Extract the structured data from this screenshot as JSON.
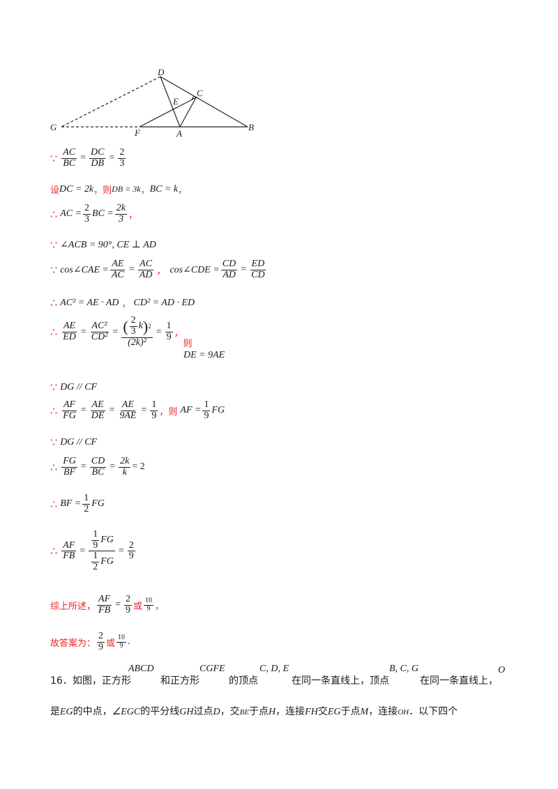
{
  "figure": {
    "labels": {
      "D": "D",
      "C": "C",
      "E": "E",
      "G": "G",
      "F": "F",
      "A": "A",
      "B": "B"
    }
  },
  "lines": {
    "l1": {
      "sym": "∵",
      "f1n": "AC",
      "f1d": "BC",
      "f2n": "DC",
      "f2d": "DB",
      "f3n": "2",
      "f3d": "3"
    },
    "l2": {
      "prefix": "设",
      "a": "DC = 2k",
      "mid": "，则",
      "b": "DB = 3k",
      "sep": "，",
      "c": "BC = k",
      "end": "，"
    },
    "l3": {
      "sym": "∴",
      "lhs": "AC =",
      "f1n": "2",
      "f1d": "3",
      "mid": "BC =",
      "f2n": "2k",
      "f2d": "3",
      "end": "，"
    },
    "l4": {
      "sym": "∵",
      "expr": "∠ACB = 90°, CE ⊥ AD"
    },
    "l5": {
      "sym": "∵",
      "a": "cos∠CAE =",
      "f1n": "AE",
      "f1d": "AC",
      "f2n": "AC",
      "f2d": "AD",
      "sep": "，",
      "b": "cos∠CDE =",
      "f3n": "CD",
      "f3d": "AD",
      "f4n": "ED",
      "f4d": "CD"
    },
    "l6": {
      "sym": "∴",
      "a": "AC² = AE · AD",
      "sep": "，",
      "b": "CD² = AD · ED"
    },
    "l7": {
      "sym": "∴",
      "f1n": "AE",
      "f1d": "ED",
      "f2n": "AC²",
      "f2d": "CD²",
      "f3n_inner_n": "2",
      "f3n_inner_d": "3",
      "f3n_k": "k",
      "f3d": "(2k)²",
      "f4n": "1",
      "f4d": "9",
      "sep": "，",
      "then": "则",
      "result": "DE = 9AE"
    },
    "l8": {
      "sym": "∵",
      "expr": "DG // CF"
    },
    "l9": {
      "sym": "∴",
      "f1n": "AF",
      "f1d": "FG",
      "f2n": "AE",
      "f2d": "DE",
      "f3n": "AE",
      "f3d": "9AE",
      "f4n": "1",
      "f4d": "9",
      "sep": "，",
      "then": "则",
      "a": "AF =",
      "f5n": "1",
      "f5d": "9",
      "b": "FG"
    },
    "l10": {
      "sym": "∵",
      "expr": "DG // CF"
    },
    "l11": {
      "sym": "∴",
      "f1n": "FG",
      "f1d": "BF",
      "f2n": "CD",
      "f2d": "BC",
      "f3n": "2k",
      "f3d": "k",
      "end": "= 2"
    },
    "l12": {
      "sym": "∴",
      "a": "BF =",
      "f1n": "1",
      "f1d": "2",
      "b": "FG"
    },
    "l13": {
      "sym": "∴",
      "f1n": "AF",
      "f1d": "FB",
      "num_n": "1",
      "num_d": "9",
      "num_t": "FG",
      "den_n": "1",
      "den_d": "2",
      "den_t": "FG",
      "f3n": "2",
      "f3d": "9"
    },
    "l14": {
      "prefix": "综上所述，",
      "f1n": "AF",
      "f1d": "FB",
      "f2n": "2",
      "f2d": "9",
      "or": "或",
      "f3n": "10",
      "f3d": "9",
      "end": "，"
    },
    "l15": {
      "prefix": "故答案为：",
      "f1n": "2",
      "f1d": "9",
      "or": "或",
      "f2n": "10",
      "f2d": "9",
      "end": "."
    }
  },
  "problem16": {
    "line1_a": "16．如图，正方形",
    "sq1": "ABCD",
    "line1_b": "和正方形",
    "sq2": "CGFE",
    "line1_c": "的顶点",
    "pts1": "C, D, E",
    "line1_d": "在同一条直线上，顶点",
    "pts2": "B, C, G",
    "line1_e": "在同一条直线上，",
    "pt_o": "O",
    "line2_a": "是",
    "seg_eg": "EG",
    "line2_b": "的中点，",
    "angle": "∠EGC",
    "line2_c": "的平分线",
    "gh": "GH",
    "line2_d": "过点",
    "pd": "D",
    "line2_e": "，交",
    "be": "BE",
    "line2_f": "于点",
    "ph": "H",
    "line2_g": "，连接",
    "fh": "FH",
    "line2_h": "交",
    "eg2": "EG",
    "line2_i": "于点",
    "pm": "M",
    "line2_j": "，连接",
    "oh": "OH",
    "line2_k": "．以下四个"
  },
  "colors": {
    "accent": "#e8262a",
    "text": "#1a1a1a"
  }
}
